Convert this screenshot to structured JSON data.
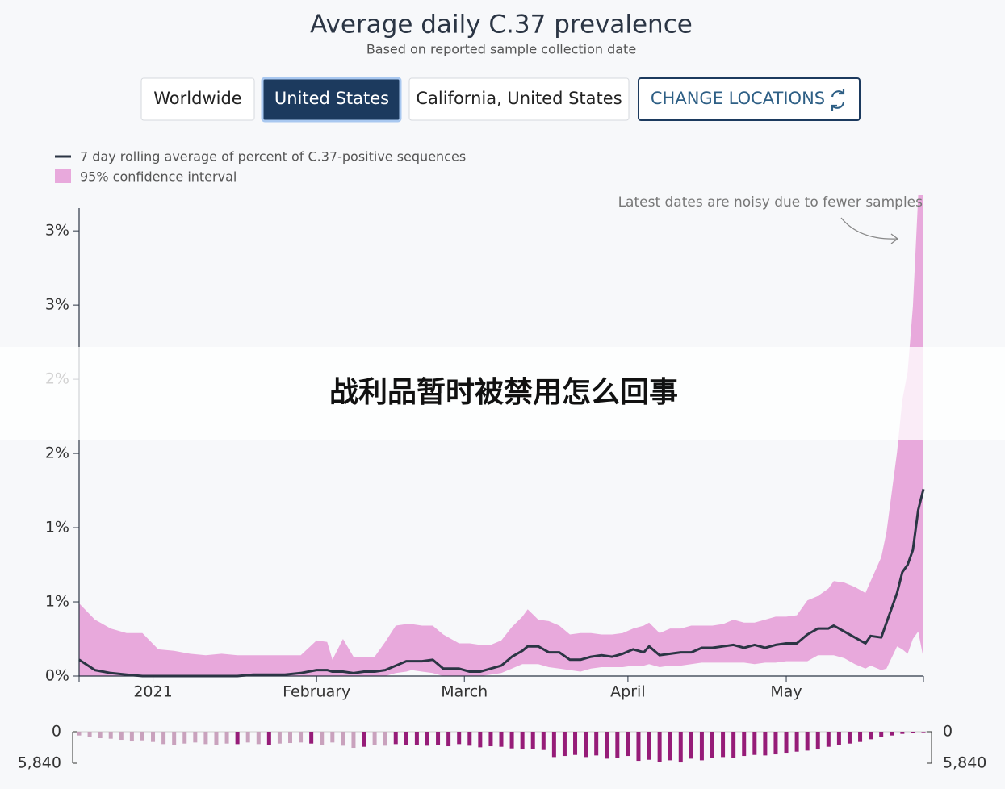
{
  "controls": {
    "buttons": [
      "Worldwide",
      "United States",
      "California, United States",
      "CHANGE LOCATIONS"
    ]
  },
  "overlay_text": "战利品暂时被禁用怎么回事",
  "chart_data": [
    {
      "type": "line",
      "title": "Average daily C.37 prevalence",
      "subtitle": "Based on reported sample collection date",
      "annotation": "Latest dates are noisy due to fewer samples",
      "x": [
        0,
        3,
        6,
        9,
        12,
        15,
        18,
        21,
        24,
        27,
        30,
        33,
        36,
        39,
        42,
        45,
        47,
        48,
        50,
        52,
        54,
        56,
        58,
        60,
        62,
        63,
        65,
        67,
        69,
        72,
        74,
        76,
        78,
        80,
        82,
        84,
        85,
        87,
        89,
        91,
        93,
        95,
        97,
        99,
        101,
        103,
        105,
        107,
        108,
        110,
        112,
        114,
        116,
        118,
        120,
        122,
        124,
        126,
        128,
        130,
        132,
        134,
        136,
        138,
        140,
        142,
        143,
        145,
        147,
        149,
        150,
        152,
        153,
        155,
        156,
        157,
        158,
        159,
        160
      ],
      "xlim": [
        0,
        160
      ],
      "xticks": [
        {
          "value": 14,
          "label": "2021"
        },
        {
          "value": 45,
          "label": "February"
        },
        {
          "value": 73,
          "label": "March"
        },
        {
          "value": 104,
          "label": "April"
        },
        {
          "value": 134,
          "label": "May"
        }
      ],
      "ylim": [
        0,
        3.24
      ],
      "yticks": [
        {
          "value": 0,
          "label": "0%"
        },
        {
          "value": 0.5,
          "label": "1%"
        },
        {
          "value": 1,
          "label": "1%"
        },
        {
          "value": 1.5,
          "label": "2%"
        },
        {
          "value": 2,
          "label": "2%"
        },
        {
          "value": 2.5,
          "label": "3%"
        },
        {
          "value": 3,
          "label": "3%"
        }
      ],
      "series": [
        {
          "name": "7 day rolling average of percent of C.37-positive sequences",
          "color": "#2b3544",
          "values": [
            0.11,
            0.04,
            0.02,
            0.01,
            0,
            0,
            0,
            0,
            0,
            0,
            0,
            0.01,
            0.01,
            0.01,
            0.02,
            0.04,
            0.04,
            0.03,
            0.03,
            0.02,
            0.03,
            0.03,
            0.04,
            0.07,
            0.1,
            0.1,
            0.1,
            0.11,
            0.05,
            0.05,
            0.03,
            0.03,
            0.05,
            0.07,
            0.13,
            0.17,
            0.2,
            0.2,
            0.16,
            0.16,
            0.11,
            0.11,
            0.13,
            0.14,
            0.13,
            0.15,
            0.18,
            0.16,
            0.2,
            0.14,
            0.15,
            0.16,
            0.16,
            0.19,
            0.19,
            0.2,
            0.21,
            0.19,
            0.21,
            0.19,
            0.21,
            0.22,
            0.22,
            0.28,
            0.32,
            0.32,
            0.34,
            0.3,
            0.26,
            0.22,
            0.27,
            0.26,
            0.36,
            0.56,
            0.7,
            0.75,
            0.85,
            1.12,
            1.26
          ]
        }
      ],
      "band": {
        "name": "95% confidence interval",
        "color": "#e8a9dc",
        "upper": [
          0.49,
          0.38,
          0.32,
          0.29,
          0.29,
          0.18,
          0.17,
          0.15,
          0.14,
          0.15,
          0.14,
          0.14,
          0.14,
          0.14,
          0.14,
          0.24,
          0.23,
          0.11,
          0.25,
          0.13,
          0.13,
          0.13,
          0.23,
          0.34,
          0.35,
          0.35,
          0.34,
          0.34,
          0.28,
          0.22,
          0.22,
          0.21,
          0.21,
          0.24,
          0.33,
          0.4,
          0.45,
          0.38,
          0.37,
          0.34,
          0.28,
          0.29,
          0.29,
          0.28,
          0.28,
          0.29,
          0.32,
          0.34,
          0.36,
          0.29,
          0.32,
          0.32,
          0.34,
          0.34,
          0.34,
          0.35,
          0.38,
          0.36,
          0.36,
          0.38,
          0.4,
          0.4,
          0.41,
          0.51,
          0.54,
          0.59,
          0.64,
          0.63,
          0.6,
          0.56,
          0.64,
          0.8,
          0.97,
          1.51,
          1.86,
          2.05,
          2.49,
          3.24,
          3.24
        ],
        "lower": [
          0,
          0,
          0,
          0,
          0,
          0,
          0,
          0,
          0,
          0,
          0,
          0,
          0,
          0,
          0,
          0,
          0,
          0,
          0,
          0,
          0,
          0,
          0,
          0.02,
          0.03,
          0.04,
          0.03,
          0.02,
          0,
          0,
          0,
          0,
          0.01,
          0.02,
          0.05,
          0.08,
          0.08,
          0.08,
          0.06,
          0.05,
          0.04,
          0.03,
          0.05,
          0.06,
          0.06,
          0.06,
          0.07,
          0.07,
          0.08,
          0.06,
          0.07,
          0.07,
          0.08,
          0.09,
          0.09,
          0.09,
          0.09,
          0.09,
          0.08,
          0.09,
          0.09,
          0.1,
          0.1,
          0.1,
          0.14,
          0.14,
          0.14,
          0.12,
          0.08,
          0.05,
          0.07,
          0.04,
          0.05,
          0.2,
          0.18,
          0.15,
          0.25,
          0.3,
          0.12
        ]
      }
    },
    {
      "type": "bar",
      "x": [
        0,
        2,
        4,
        6,
        8,
        10,
        12,
        14,
        16,
        18,
        20,
        22,
        24,
        26,
        28,
        30,
        32,
        34,
        36,
        38,
        40,
        42,
        44,
        46,
        48,
        50,
        52,
        54,
        56,
        58,
        60,
        62,
        64,
        66,
        68,
        70,
        72,
        74,
        76,
        78,
        80,
        82,
        84,
        86,
        88,
        90,
        92,
        94,
        96,
        98,
        100,
        102,
        104,
        106,
        108,
        110,
        112,
        114,
        116,
        118,
        120,
        122,
        124,
        126,
        128,
        130,
        132,
        134,
        136,
        138,
        140,
        142,
        144,
        146,
        148,
        150,
        152,
        154,
        156,
        158,
        160
      ],
      "xlim": [
        0,
        160
      ],
      "ylim": [
        0,
        5840
      ],
      "yticks": [
        0,
        {
          "value": 5840,
          "label": "5,840"
        }
      ],
      "values": [
        700,
        1000,
        1200,
        1300,
        1500,
        1800,
        1600,
        1900,
        2300,
        2500,
        2200,
        2000,
        2300,
        2400,
        2200,
        2300,
        2000,
        2300,
        2400,
        2200,
        2100,
        2000,
        2200,
        2400,
        2000,
        2600,
        3000,
        2800,
        2400,
        2600,
        2300,
        2500,
        2400,
        2600,
        2500,
        2700,
        2300,
        2600,
        2900,
        2700,
        2800,
        3100,
        3300,
        3200,
        3400,
        4700,
        4500,
        4300,
        4700,
        4400,
        5000,
        4800,
        4500,
        5400,
        5200,
        5600,
        5300,
        5700,
        5000,
        5300,
        4900,
        4700,
        4900,
        4500,
        4300,
        4400,
        4200,
        3900,
        3700,
        3500,
        3300,
        2800,
        2500,
        2200,
        1900,
        1400,
        1000,
        700,
        400,
        200,
        100
      ],
      "colors": [
        "#c9a2bd",
        "#c9a2bd",
        "#c9a2bd",
        "#c9a2bd",
        "#c9a2bd",
        "#c9a2bd",
        "#c9a2bd",
        "#c9a2bd",
        "#c9a2bd",
        "#c9a2bd",
        "#c9a2bd",
        "#c9a2bd",
        "#c9a2bd",
        "#c9a2bd",
        "#c9a2bd",
        "#961c78",
        "#c9a2bd",
        "#c9a2bd",
        "#961c78",
        "#c9a2bd",
        "#c9a2bd",
        "#c9a2bd",
        "#961c78",
        "#c9a2bd",
        "#c9a2bd",
        "#c9a2bd",
        "#c9a2bd",
        "#961c78",
        "#c9a2bd",
        "#c9a2bd",
        "#961c78",
        "#961c78",
        "#961c78",
        "#961c78",
        "#961c78",
        "#961c78",
        "#961c78",
        "#961c78",
        "#961c78",
        "#961c78",
        "#961c78",
        "#961c78",
        "#961c78",
        "#961c78",
        "#961c78",
        "#961c78",
        "#961c78",
        "#961c78",
        "#961c78",
        "#961c78",
        "#961c78",
        "#961c78",
        "#961c78",
        "#961c78",
        "#961c78",
        "#961c78",
        "#961c78",
        "#961c78",
        "#961c78",
        "#961c78",
        "#961c78",
        "#961c78",
        "#961c78",
        "#961c78",
        "#961c78",
        "#961c78",
        "#961c78",
        "#961c78",
        "#961c78",
        "#961c78",
        "#961c78",
        "#961c78",
        "#961c78",
        "#961c78",
        "#961c78",
        "#961c78",
        "#961c78",
        "#961c78",
        "#961c78",
        "#961c78",
        "#961c78"
      ]
    }
  ]
}
